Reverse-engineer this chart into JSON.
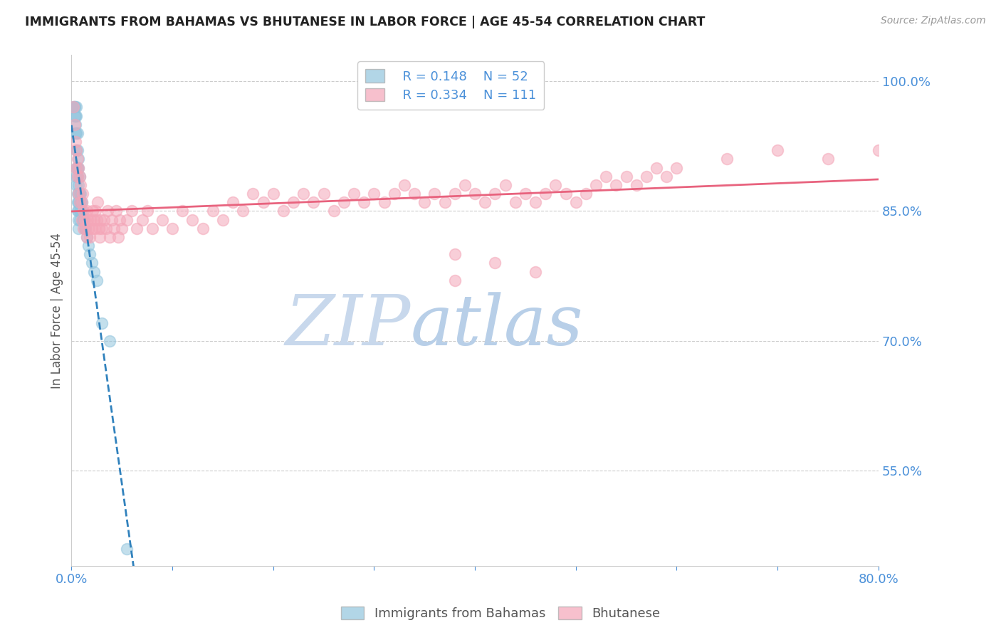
{
  "title": "IMMIGRANTS FROM BAHAMAS VS BHUTANESE IN LABOR FORCE | AGE 45-54 CORRELATION CHART",
  "source": "Source: ZipAtlas.com",
  "ylabel": "In Labor Force | Age 45-54",
  "xlim": [
    0.0,
    0.8
  ],
  "ylim": [
    0.44,
    1.03
  ],
  "yticks": [
    0.55,
    0.7,
    0.85,
    1.0
  ],
  "xticks": [
    0.0,
    0.1,
    0.2,
    0.3,
    0.4,
    0.5,
    0.6,
    0.7,
    0.8
  ],
  "legend_r_blue": "0.148",
  "legend_n_blue": "52",
  "legend_r_pink": "0.334",
  "legend_n_pink": "111",
  "blue_color": "#92c5de",
  "pink_color": "#f4a6b8",
  "blue_line_color": "#3182bd",
  "pink_line_color": "#e8637e",
  "watermark": "ZIPatlas",
  "watermark_color": "#dce9f5",
  "grid_color": "#cccccc",
  "axis_color": "#4a90d9",
  "title_color": "#222222",
  "bahamas_x": [
    0.002,
    0.003,
    0.003,
    0.003,
    0.004,
    0.004,
    0.004,
    0.005,
    0.005,
    0.005,
    0.005,
    0.005,
    0.005,
    0.005,
    0.006,
    0.006,
    0.006,
    0.006,
    0.006,
    0.006,
    0.006,
    0.007,
    0.007,
    0.007,
    0.007,
    0.007,
    0.007,
    0.007,
    0.007,
    0.008,
    0.008,
    0.008,
    0.008,
    0.008,
    0.009,
    0.009,
    0.009,
    0.01,
    0.01,
    0.011,
    0.012,
    0.013,
    0.014,
    0.015,
    0.017,
    0.018,
    0.02,
    0.022,
    0.025,
    0.03,
    0.038,
    0.055
  ],
  "bahamas_y": [
    0.97,
    0.97,
    0.96,
    0.97,
    0.96,
    0.95,
    0.94,
    0.97,
    0.96,
    0.94,
    0.92,
    0.9,
    0.89,
    0.88,
    0.94,
    0.92,
    0.9,
    0.89,
    0.87,
    0.86,
    0.85,
    0.91,
    0.9,
    0.88,
    0.87,
    0.86,
    0.85,
    0.84,
    0.83,
    0.89,
    0.87,
    0.86,
    0.85,
    0.84,
    0.87,
    0.86,
    0.85,
    0.86,
    0.85,
    0.84,
    0.84,
    0.83,
    0.83,
    0.82,
    0.81,
    0.8,
    0.79,
    0.78,
    0.77,
    0.72,
    0.7,
    0.46
  ],
  "bhutanese_x": [
    0.002,
    0.003,
    0.004,
    0.005,
    0.005,
    0.006,
    0.006,
    0.007,
    0.007,
    0.008,
    0.008,
    0.009,
    0.01,
    0.01,
    0.011,
    0.012,
    0.012,
    0.013,
    0.014,
    0.015,
    0.015,
    0.016,
    0.017,
    0.018,
    0.019,
    0.02,
    0.021,
    0.022,
    0.023,
    0.024,
    0.025,
    0.026,
    0.027,
    0.028,
    0.029,
    0.03,
    0.032,
    0.034,
    0.036,
    0.038,
    0.04,
    0.042,
    0.044,
    0.046,
    0.048,
    0.05,
    0.055,
    0.06,
    0.065,
    0.07,
    0.075,
    0.08,
    0.09,
    0.1,
    0.11,
    0.12,
    0.13,
    0.14,
    0.15,
    0.16,
    0.17,
    0.18,
    0.19,
    0.2,
    0.21,
    0.22,
    0.23,
    0.24,
    0.25,
    0.26,
    0.27,
    0.28,
    0.29,
    0.3,
    0.31,
    0.32,
    0.33,
    0.34,
    0.35,
    0.36,
    0.37,
    0.38,
    0.39,
    0.4,
    0.41,
    0.42,
    0.43,
    0.44,
    0.45,
    0.46,
    0.47,
    0.48,
    0.49,
    0.5,
    0.51,
    0.52,
    0.53,
    0.54,
    0.55,
    0.56,
    0.57,
    0.58,
    0.59,
    0.6,
    0.65,
    0.7,
    0.75,
    0.8,
    0.38,
    0.42,
    0.46,
    0.38
  ],
  "bhutanese_y": [
    0.97,
    0.95,
    0.93,
    0.92,
    0.9,
    0.91,
    0.89,
    0.9,
    0.87,
    0.89,
    0.86,
    0.88,
    0.86,
    0.84,
    0.87,
    0.85,
    0.83,
    0.84,
    0.83,
    0.85,
    0.82,
    0.84,
    0.83,
    0.82,
    0.84,
    0.83,
    0.85,
    0.84,
    0.83,
    0.85,
    0.84,
    0.86,
    0.83,
    0.82,
    0.84,
    0.83,
    0.84,
    0.83,
    0.85,
    0.82,
    0.84,
    0.83,
    0.85,
    0.82,
    0.84,
    0.83,
    0.84,
    0.85,
    0.83,
    0.84,
    0.85,
    0.83,
    0.84,
    0.83,
    0.85,
    0.84,
    0.83,
    0.85,
    0.84,
    0.86,
    0.85,
    0.87,
    0.86,
    0.87,
    0.85,
    0.86,
    0.87,
    0.86,
    0.87,
    0.85,
    0.86,
    0.87,
    0.86,
    0.87,
    0.86,
    0.87,
    0.88,
    0.87,
    0.86,
    0.87,
    0.86,
    0.87,
    0.88,
    0.87,
    0.86,
    0.87,
    0.88,
    0.86,
    0.87,
    0.86,
    0.87,
    0.88,
    0.87,
    0.86,
    0.87,
    0.88,
    0.89,
    0.88,
    0.89,
    0.88,
    0.89,
    0.9,
    0.89,
    0.9,
    0.91,
    0.92,
    0.91,
    0.92,
    0.8,
    0.79,
    0.78,
    0.77
  ]
}
